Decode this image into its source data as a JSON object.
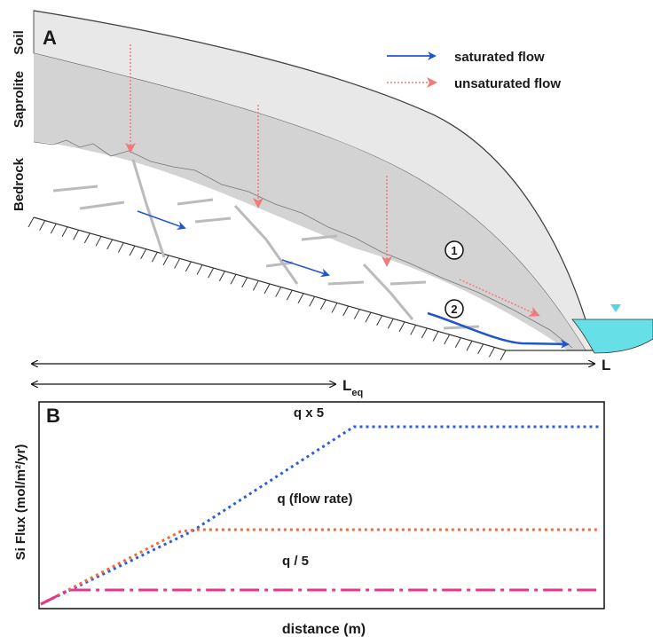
{
  "panel_a": {
    "letter": "A",
    "layers": {
      "soil": "Soil",
      "saprolite": "Saprolite",
      "bedrock": "Bedrock"
    },
    "legend": {
      "saturated": "saturated flow",
      "unsaturated": "unsaturated flow"
    },
    "markers": {
      "one": "1",
      "two": "2"
    },
    "length_label": "L",
    "leq_label": "L",
    "leq_sub": "eq",
    "colors": {
      "saturated": "#2255cc",
      "unsaturated": "#f07a7a",
      "water": "#66e0e6"
    }
  },
  "panel_b": {
    "letter": "B",
    "ylabel": "Si Flux (mol/m²/yr)",
    "xlabel": "distance (m)",
    "series_labels": {
      "high": "q x 5",
      "mid": "q (flow rate)",
      "low": "q / 5"
    }
  },
  "chart_data": {
    "type": "line",
    "xlabel": "distance (m)",
    "ylabel": "Si Flux (mol/m²/yr)",
    "x": [
      0,
      0.25,
      0.5,
      0.75,
      1
    ],
    "series": [
      {
        "name": "q x 5",
        "color": "#2b5fd9",
        "style": "dotted",
        "points": [
          [
            0,
            0
          ],
          [
            0.27,
            0.41
          ],
          [
            0.56,
            1.0
          ],
          [
            1,
            1.0
          ]
        ]
      },
      {
        "name": "q (flow rate)",
        "color": "#f06a3a",
        "style": "dotted",
        "points": [
          [
            0,
            0
          ],
          [
            0.25,
            0.41
          ],
          [
            0.28,
            0.42
          ],
          [
            1,
            0.42
          ]
        ]
      },
      {
        "name": "q / 5",
        "color": "#e8358a",
        "style": "dashdot",
        "points": [
          [
            0,
            0
          ],
          [
            0.05,
            0.08
          ],
          [
            1,
            0.08
          ]
        ]
      }
    ]
  }
}
